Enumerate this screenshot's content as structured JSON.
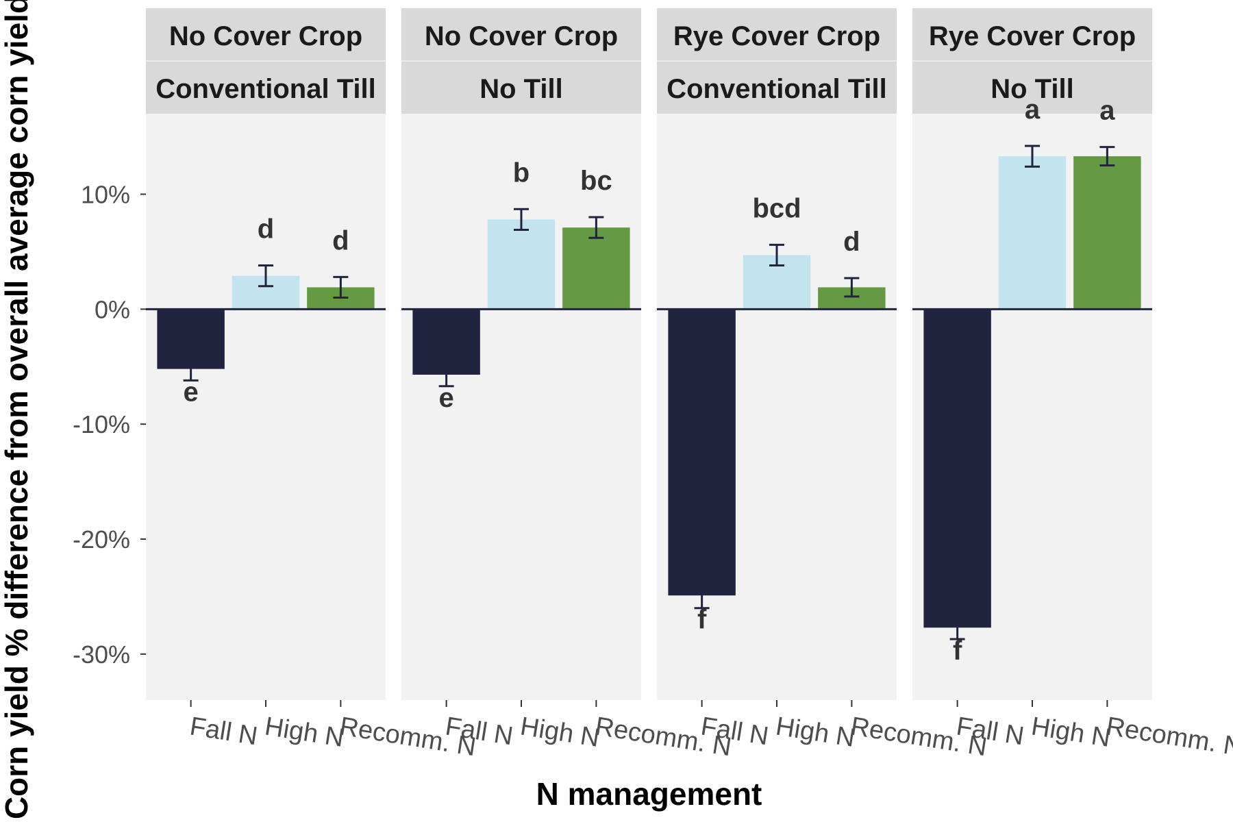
{
  "chart_data": {
    "type": "bar",
    "xlabel": "N management",
    "ylabel": "Corn yield % difference from overall average corn yield",
    "ylim": [
      -34,
      17
    ],
    "yticks": [
      10,
      0,
      -10,
      -20,
      -30
    ],
    "ytick_labels": [
      "10%",
      "0%",
      "-10%",
      "-20%",
      "-30%"
    ],
    "categories": [
      "Fall N",
      "High N",
      "Recomm. N"
    ],
    "colors": {
      "Fall N": "#20243f",
      "High N": "#c3e4ef",
      "Recomm. N": "#669944"
    },
    "panel_background": "#f2f2f2",
    "strip_background": "#d9d9d9",
    "grid": false,
    "legend": "none",
    "panels": [
      {
        "strip_top": "No Cover Crop",
        "strip_bottom": "Conventional Till",
        "bars": [
          {
            "category": "Fall N",
            "value": -5.2,
            "error": 1.0,
            "label": "e"
          },
          {
            "category": "High N",
            "value": 2.9,
            "error": 0.9,
            "label": "d"
          },
          {
            "category": "Recomm. N",
            "value": 1.9,
            "error": 0.9,
            "label": "d"
          }
        ]
      },
      {
        "strip_top": "No Cover Crop",
        "strip_bottom": "No Till",
        "bars": [
          {
            "category": "Fall N",
            "value": -5.7,
            "error": 1.0,
            "label": "e"
          },
          {
            "category": "High N",
            "value": 7.8,
            "error": 0.9,
            "label": "b"
          },
          {
            "category": "Recomm. N",
            "value": 7.1,
            "error": 0.9,
            "label": "bc"
          }
        ]
      },
      {
        "strip_top": "Rye Cover Crop",
        "strip_bottom": "Conventional Till",
        "bars": [
          {
            "category": "Fall N",
            "value": -24.9,
            "error": 1.1,
            "label": "f"
          },
          {
            "category": "High N",
            "value": 4.7,
            "error": 0.9,
            "label": "bcd"
          },
          {
            "category": "Recomm. N",
            "value": 1.9,
            "error": 0.8,
            "label": "d"
          }
        ]
      },
      {
        "strip_top": "Rye Cover Crop",
        "strip_bottom": "No Till",
        "bars": [
          {
            "category": "Fall N",
            "value": -27.7,
            "error": 1.0,
            "label": "f"
          },
          {
            "category": "High N",
            "value": 13.3,
            "error": 0.9,
            "label": "a"
          },
          {
            "category": "Recomm. N",
            "value": 13.3,
            "error": 0.8,
            "label": "a"
          }
        ]
      }
    ]
  }
}
